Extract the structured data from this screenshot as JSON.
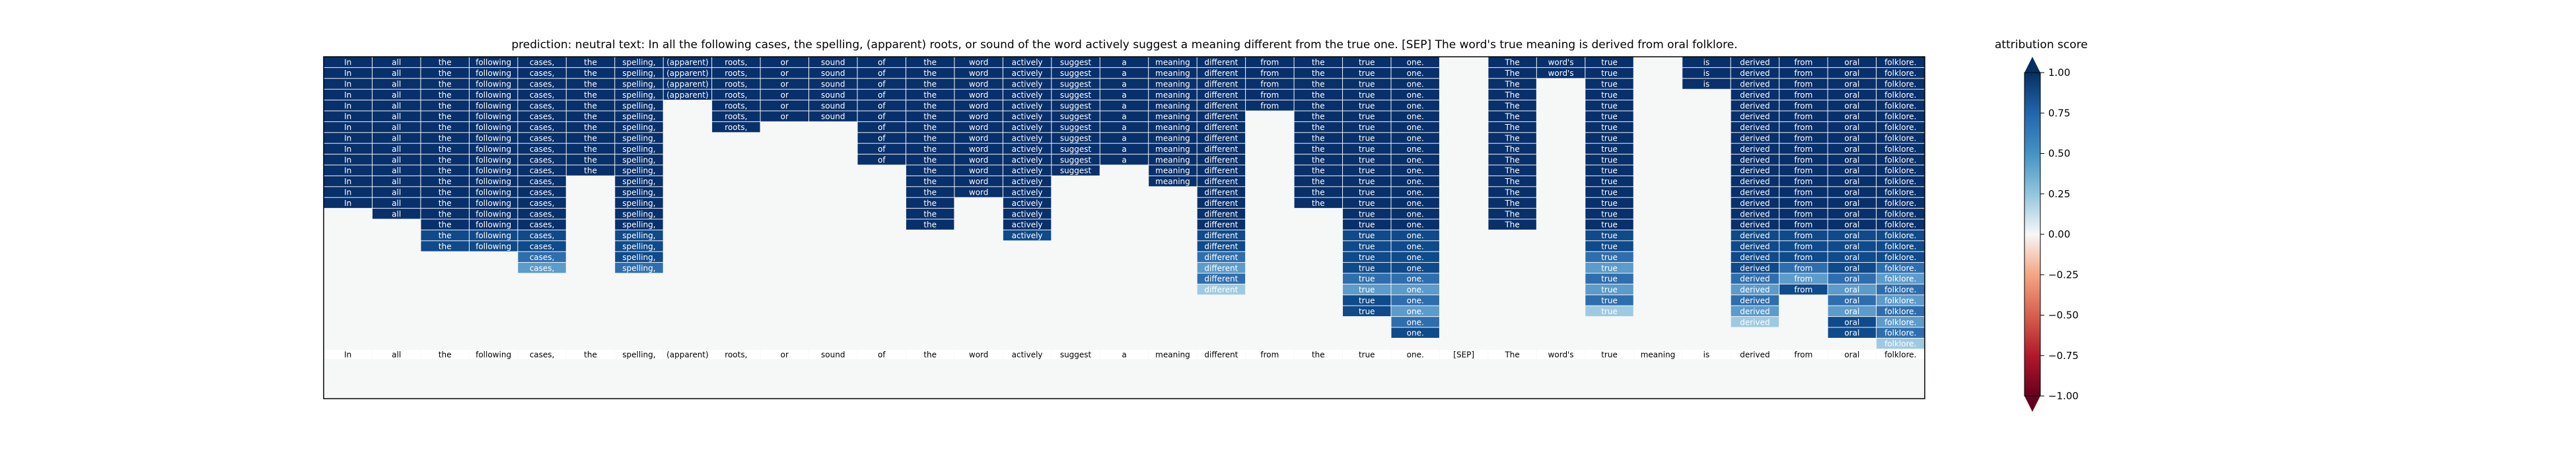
{
  "title": "prediction:  neutral     text:  In all the following cases, the spelling, (apparent) roots, or sound of the word actively suggest a meaning different from the true one. [SEP] The word's true meaning is derived from oral folklore.",
  "colorbar": {
    "label": "attribution score",
    "ticks": [
      "1.00",
      "0.75",
      "0.50",
      "0.25",
      "0.00",
      "−0.25",
      "−0.50",
      "−0.75",
      "−1.00"
    ]
  },
  "colors": {
    "max": "#08306b",
    "high": "#0f4a8a",
    "mid": "#2f6ead",
    "low": "#5c9bca",
    "faint": "#9ecae1",
    "empty": "#f6f7f7"
  },
  "chart_data": {
    "type": "heatmap",
    "tokens": [
      "In",
      "all",
      "the",
      "following",
      "cases,",
      "the",
      "spelling,",
      "(apparent)",
      "roots,",
      "or",
      "sound",
      "of",
      "the",
      "word",
      "actively",
      "suggest",
      "a",
      "meaning",
      "different",
      "from",
      "the",
      "true",
      "one.",
      "[SEP]",
      "The",
      "word's",
      "true",
      "meaning",
      "is",
      "derived",
      "from",
      "oral",
      "folklore."
    ],
    "step_counts": [
      14,
      15,
      18,
      18,
      20,
      11,
      20,
      4,
      7,
      6,
      6,
      10,
      16,
      13,
      17,
      11,
      10,
      12,
      22,
      5,
      14,
      24,
      26,
      0,
      16,
      2,
      24,
      0,
      3,
      25,
      22,
      26,
      27
    ],
    "num_steps": 27,
    "value_range": [
      -1.0,
      1.0
    ],
    "colorscale": "RdBu",
    "strong_attribution_bands": {
      "cases,": [
        19,
        20
      ],
      "spelling,": [
        20
      ],
      "different": [
        19,
        20,
        21,
        22
      ],
      "true": [
        21,
        22
      ],
      "one.": [
        21,
        22,
        23,
        24,
        25
      ],
      "true (after The)": [
        19,
        20,
        21,
        22,
        23,
        24
      ],
      "derived": [
        21,
        22,
        23,
        24,
        25
      ],
      "from (after derived)": [
        20,
        21
      ],
      "oral": [
        21,
        22,
        23,
        24
      ],
      "folklore.": [
        20,
        21,
        22,
        23,
        24,
        25,
        26,
        27
      ]
    }
  }
}
